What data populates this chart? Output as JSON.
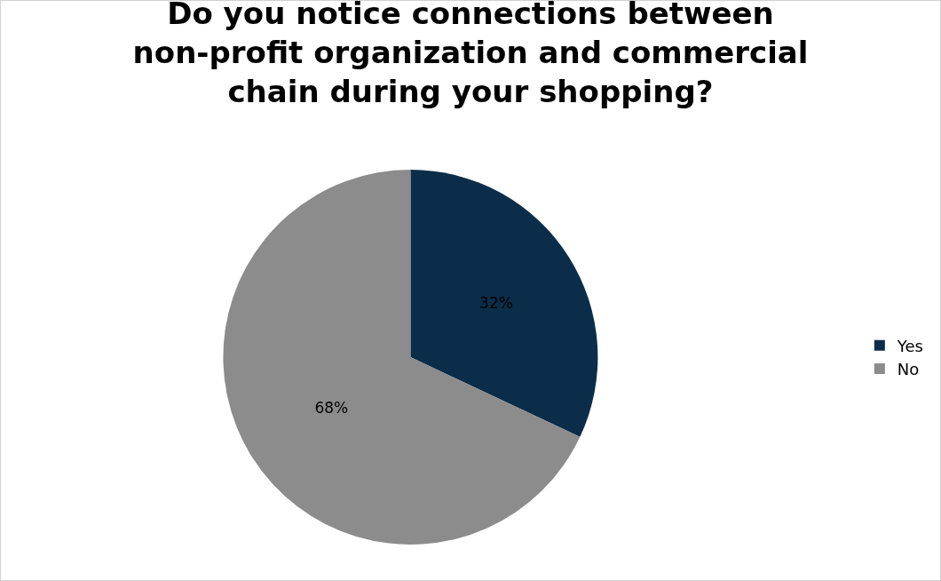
{
  "chart_data": {
    "type": "pie",
    "title": "Do you notice connections between non-profit organization and commercial chain during your shopping?",
    "categories": [
      "Yes",
      "No"
    ],
    "values": [
      32,
      68
    ],
    "value_labels": [
      "32%",
      "68%"
    ],
    "colors": [
      "#0b2d4a",
      "#8c8c8c"
    ],
    "legend": "right"
  }
}
